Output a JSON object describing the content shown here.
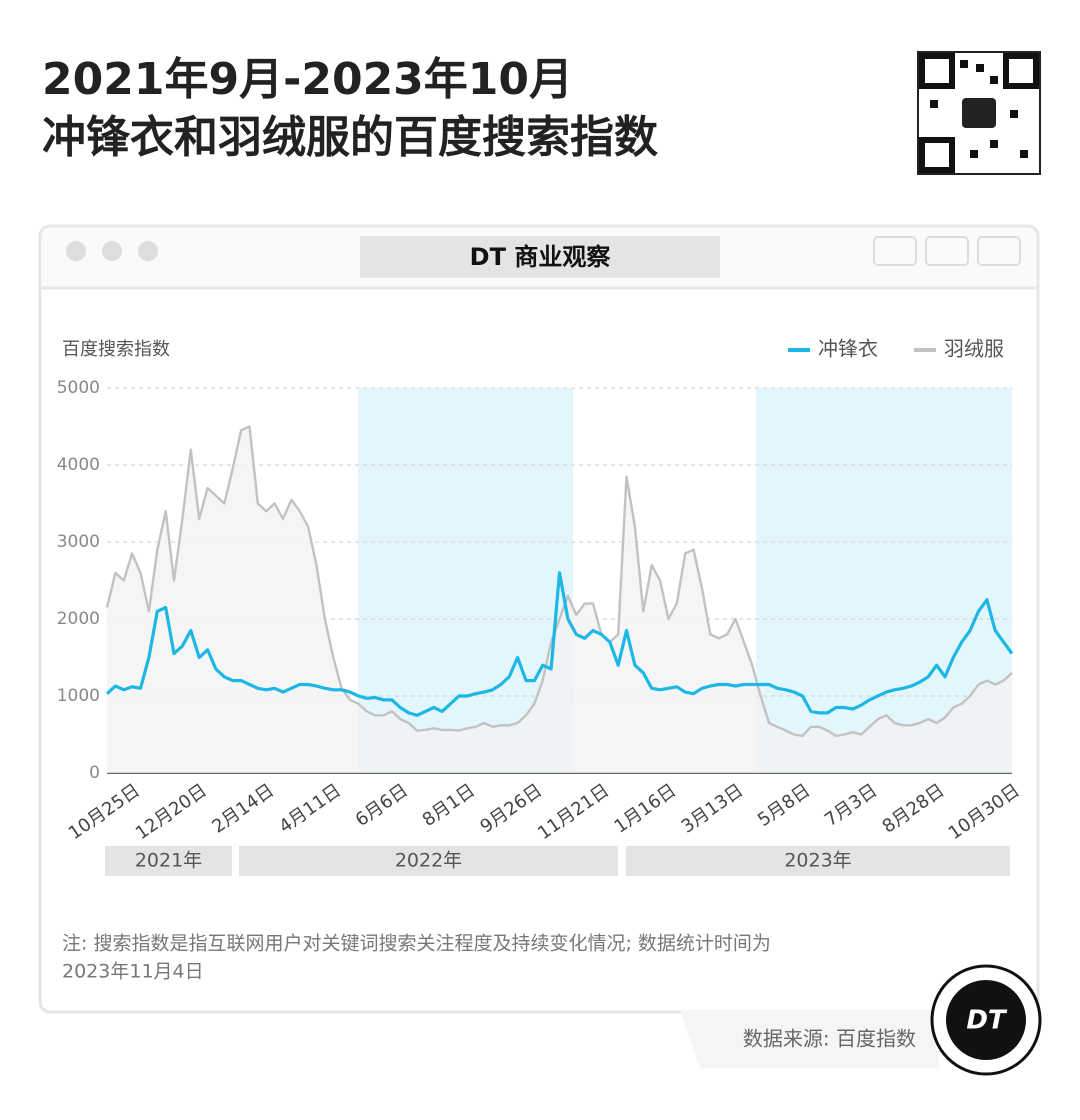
{
  "chart_data": {
    "type": "line",
    "title_lines": [
      "2021年9月-2023年10月",
      "冲锋衣和羽绒服的百度搜索指数"
    ],
    "window_title": "DT 商业观察",
    "y_axis_label": "百度搜索指数",
    "categories": [
      null,
      null,
      null,
      "10月25日",
      null,
      null,
      null,
      null,
      null,
      null,
      null,
      "12月20日",
      null,
      null,
      null,
      null,
      null,
      null,
      null,
      "2月14日",
      null,
      null,
      null,
      null,
      null,
      null,
      null,
      "4月11日",
      null,
      null,
      null,
      null,
      null,
      null,
      null,
      "6月6日",
      null,
      null,
      null,
      null,
      null,
      null,
      null,
      "8月1日",
      null,
      null,
      null,
      null,
      null,
      null,
      null,
      "9月26日",
      null,
      null,
      null,
      null,
      null,
      null,
      null,
      "11月21日",
      null,
      null,
      null,
      null,
      null,
      null,
      null,
      "1月16日",
      null,
      null,
      null,
      null,
      null,
      null,
      null,
      "3月13日",
      null,
      null,
      null,
      null,
      null,
      null,
      null,
      "5月8日",
      null,
      null,
      null,
      null,
      null,
      null,
      null,
      "7月3日",
      null,
      null,
      null,
      null,
      null,
      null,
      null,
      "8月28日",
      null,
      null,
      null,
      null,
      null,
      null,
      null,
      null,
      "10月30日"
    ],
    "years": [
      "2021年",
      "2022年",
      "2023年"
    ],
    "series": [
      {
        "name": "冲锋衣",
        "color": "#1cb7e4",
        "values": [
          1030,
          1130,
          1080,
          1120,
          1100,
          1500,
          2100,
          2150,
          1550,
          1650,
          1850,
          1500,
          1600,
          1350,
          1250,
          1200,
          1200,
          1150,
          1100,
          1080,
          1100,
          1050,
          1100,
          1150,
          1150,
          1130,
          1100,
          1080,
          1080,
          1050,
          1000,
          970,
          980,
          950,
          950,
          850,
          780,
          750,
          800,
          850,
          800,
          900,
          1000,
          1000,
          1030,
          1050,
          1080,
          1150,
          1250,
          1500,
          1200,
          1200,
          1400,
          1350,
          2600,
          2000,
          1800,
          1750,
          1850,
          1800,
          1700,
          1400,
          1850,
          1400,
          1300,
          1100,
          1080,
          1100,
          1120,
          1050,
          1030,
          1100,
          1130,
          1150,
          1150,
          1130,
          1150,
          1150,
          1150,
          1150,
          1100,
          1080,
          1050,
          1000,
          800,
          780,
          780,
          850,
          850,
          830,
          880,
          950,
          1000,
          1050,
          1080,
          1100,
          1130,
          1180,
          1250,
          1400,
          1250,
          1500,
          1700,
          1850,
          2100,
          2250,
          1850,
          1700,
          1550
        ]
      },
      {
        "name": "羽绒服",
        "color": "#c2c2c2",
        "values": [
          2150,
          2600,
          2500,
          2850,
          2600,
          2100,
          2900,
          3400,
          2500,
          3300,
          4200,
          3300,
          3700,
          3600,
          3500,
          3950,
          4450,
          4500,
          3500,
          3400,
          3500,
          3300,
          3550,
          3400,
          3200,
          2700,
          2000,
          1500,
          1100,
          950,
          900,
          800,
          750,
          750,
          800,
          700,
          650,
          550,
          560,
          580,
          560,
          560,
          550,
          580,
          600,
          650,
          600,
          620,
          620,
          650,
          750,
          900,
          1200,
          1700,
          2000,
          2300,
          2050,
          2200,
          2200,
          1800,
          1700,
          1800,
          3850,
          3200,
          2100,
          2700,
          2500,
          2000,
          2200,
          2850,
          2900,
          2400,
          1800,
          1750,
          1800,
          2000,
          1700,
          1400,
          1000,
          650,
          600,
          550,
          500,
          480,
          600,
          600,
          550,
          480,
          500,
          530,
          500,
          600,
          700,
          750,
          650,
          620,
          620,
          650,
          700,
          650,
          720,
          850,
          900,
          1000,
          1150,
          1200,
          1150,
          1200,
          1300
        ]
      }
    ],
    "ylim": [
      0,
      5000
    ],
    "yticks": [
      0,
      1000,
      2000,
      3000,
      4000,
      5000
    ],
    "grid": true,
    "legend": "top-right",
    "note_lines": [
      "注: 搜索指数是指互联网用户对关键词搜索关注程度及持续变化情况; 数据统计时间为",
      "2023年11月4日"
    ],
    "source": "数据来源: 百度指数",
    "logo": "DT"
  }
}
